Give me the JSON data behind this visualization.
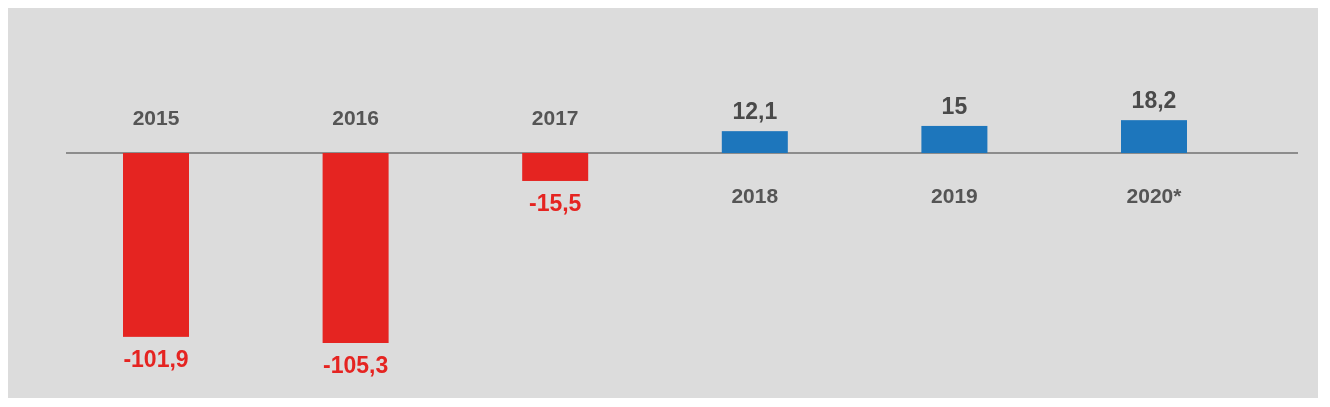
{
  "chart_data": {
    "type": "bar",
    "categories": [
      "2015",
      "2016",
      "2017",
      "2018",
      "2019",
      "2020*"
    ],
    "values": [
      -101.9,
      -105.3,
      -15.5,
      12.1,
      15,
      18.2
    ],
    "colors": [
      "#e52421",
      "#e52421",
      "#e52421",
      "#1d76bc",
      "#1d76bc",
      "#1d76bc"
    ],
    "value_labels": [
      "-101,9",
      "-105,3",
      "-15,5",
      "12,1",
      "15",
      "18,2"
    ]
  }
}
